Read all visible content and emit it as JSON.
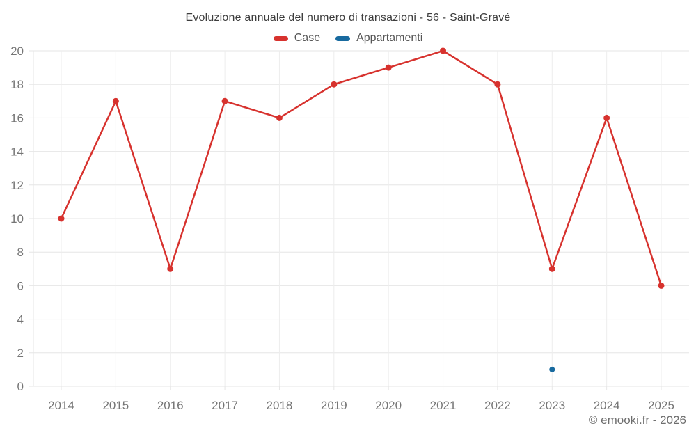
{
  "chart_data": {
    "type": "line",
    "title": "Evoluzione annuale del numero di transazioni - 56 - Saint-Gravé",
    "categories": [
      "2014",
      "2015",
      "2016",
      "2017",
      "2018",
      "2019",
      "2020",
      "2021",
      "2022",
      "2023",
      "2024",
      "2025"
    ],
    "series": [
      {
        "name": "Case",
        "color": "#d7322e",
        "values": [
          10,
          17,
          7,
          17,
          16,
          18,
          19,
          20,
          18,
          7,
          16,
          6
        ]
      },
      {
        "name": "Appartamenti",
        "color": "#186a9f",
        "values": [
          null,
          null,
          null,
          null,
          null,
          null,
          null,
          null,
          null,
          1,
          null,
          null
        ]
      }
    ],
    "xlabel": "",
    "ylabel": "",
    "ylim": [
      0,
      20
    ],
    "ytick_step": 2,
    "grid": true,
    "legend_position": "top"
  },
  "watermark": "© emooki.fr - 2026",
  "colors": {
    "grid_h": "#e6e6e6",
    "grid_v": "#ededed",
    "axis_label": "#757575",
    "title": "#3d3d3d"
  }
}
